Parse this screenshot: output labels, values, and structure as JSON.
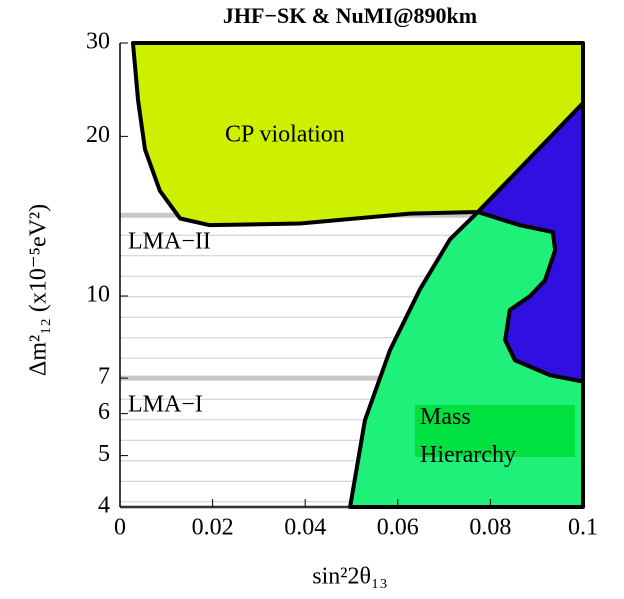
{
  "chart_data": {
    "type": "region",
    "title": "JHF−SK & NuMI@890km",
    "xlabel": "sin²2θ₁₃",
    "ylabel": "Δm²₁₂ (x10⁻⁵eV²)",
    "xlim": [
      0,
      0.1
    ],
    "xticks": [
      0,
      0.02,
      0.04,
      0.06,
      0.08,
      0.1
    ],
    "ylim": [
      4,
      30
    ],
    "yticks": [
      4,
      5,
      6,
      7,
      10,
      20,
      30
    ],
    "ylog": true,
    "lma_lines": [
      {
        "label": "LMA−II",
        "y": 14.2
      },
      {
        "label": "LMA−I",
        "y": 7
      }
    ],
    "series": [
      {
        "name": "CP violation",
        "color": "#ccf000",
        "x": [
          0.0028,
          0.0039,
          0.0054,
          0.0086,
          0.013,
          0.0194,
          0.0389,
          0.0626,
          0.0773,
          0.1,
          0.1
        ],
        "y": [
          30,
          23.4,
          18.9,
          15.8,
          14.0,
          13.6,
          13.7,
          14.3,
          14.4,
          23.1,
          30
        ]
      },
      {
        "name": "Mass Hierarchy",
        "color": "#1ef07a",
        "label_color": "#00e040",
        "x": [
          0.0497,
          0.0529,
          0.0583,
          0.0648,
          0.0713,
          0.0773,
          0.0864,
          0.0935,
          0.094,
          0.0918,
          0.0886,
          0.0842,
          0.0832,
          0.0853,
          0.0929,
          0.1,
          0.1
        ],
        "y": [
          4,
          5.83,
          7.9,
          10.3,
          12.8,
          14.4,
          13.6,
          13.2,
          12.2,
          10.7,
          10.0,
          9.41,
          8.26,
          7.57,
          7.09,
          6.9,
          4
        ]
      },
      {
        "name": "",
        "color": "#3010e0",
        "x": [
          0.0773,
          0.1,
          0.1,
          0.0929,
          0.0853,
          0.0832,
          0.0842,
          0.0886,
          0.0918,
          0.094,
          0.0935,
          0.0864
        ],
        "y": [
          14.4,
          23.1,
          6.9,
          7.09,
          7.57,
          8.26,
          9.41,
          10.0,
          10.7,
          12.2,
          13.2,
          13.6
        ]
      }
    ]
  }
}
